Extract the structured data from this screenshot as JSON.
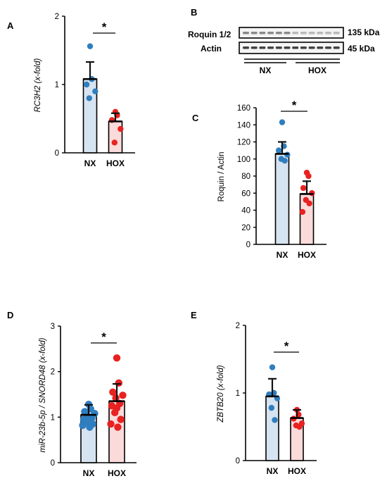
{
  "chart_data": [
    {
      "panel": "A",
      "type": "bar",
      "categories": [
        "NX",
        "HOX"
      ],
      "values": [
        1.08,
        0.46
      ],
      "errors": [
        0.25,
        0.12
      ],
      "points": [
        [
          1.56,
          1.08,
          1.0,
          0.9,
          0.8
        ],
        [
          0.6,
          0.55,
          0.48,
          0.35,
          0.15
        ]
      ],
      "ylabel": "RC3H2 (x-fold)",
      "ylim": [
        0,
        2
      ],
      "yticks": [
        "0",
        "1",
        "2"
      ],
      "significance": "*",
      "colors": {
        "bar_fill": [
          "#d6e3f1",
          "#fbdada"
        ],
        "dots": [
          "#2f7ebf",
          "#e82121"
        ],
        "error": "#111111"
      }
    },
    {
      "panel": "B",
      "type": "western-blot",
      "rows": [
        {
          "label": "Roquin 1/2",
          "size": "135 kDa"
        },
        {
          "label": "Actin",
          "size": "45 kDa"
        }
      ],
      "groups": [
        "NX",
        "HOX"
      ]
    },
    {
      "panel": "C",
      "type": "bar",
      "categories": [
        "NX",
        "HOX"
      ],
      "values": [
        106,
        59
      ],
      "errors": [
        14,
        15
      ],
      "points": [
        [
          143,
          115,
          110,
          105,
          100,
          98
        ],
        [
          84,
          80,
          66,
          60,
          52,
          48,
          38
        ]
      ],
      "ylabel": "Roquin / Actin",
      "ylim": [
        0,
        160
      ],
      "yticks": [
        "0",
        "20",
        "40",
        "60",
        "80",
        "100",
        "120",
        "140",
        "160"
      ],
      "significance": "*",
      "colors": {
        "bar_fill": [
          "#d6e3f1",
          "#fbdada"
        ],
        "dots": [
          "#2f7ebf",
          "#e82121"
        ],
        "error": "#111111"
      }
    },
    {
      "panel": "D",
      "type": "bar",
      "categories": [
        "NX",
        "HOX"
      ],
      "values": [
        1.05,
        1.35
      ],
      "errors": [
        0.22,
        0.38
      ],
      "points": [
        [
          1.28,
          1.18,
          1.12,
          1.08,
          1.02,
          0.98,
          0.95,
          0.93,
          0.9,
          0.85,
          0.82,
          0.78
        ],
        [
          2.3,
          1.75,
          1.55,
          1.48,
          1.42,
          1.3,
          1.25,
          1.2,
          1.1,
          0.95,
          0.85,
          0.78
        ]
      ],
      "ylabel": "miR-23b-5p / SNORD48 (x-fold)",
      "ylim": [
        0,
        3
      ],
      "yticks": [
        "0",
        "1",
        "2",
        "3"
      ],
      "significance": "*",
      "colors": {
        "bar_fill": [
          "#d6e3f1",
          "#fbdada"
        ],
        "dots": [
          "#2f7ebf",
          "#e82121"
        ],
        "error": "#111111"
      }
    },
    {
      "panel": "E",
      "type": "bar",
      "categories": [
        "NX",
        "HOX"
      ],
      "values": [
        0.95,
        0.63
      ],
      "errors": [
        0.26,
        0.12
      ],
      "points": [
        [
          1.38,
          1.0,
          0.98,
          0.92,
          0.78,
          0.6
        ],
        [
          0.75,
          0.68,
          0.62,
          0.55,
          0.52,
          0.5
        ]
      ],
      "ylabel": "ZBTB20 (x-fold)",
      "ylim": [
        0,
        2
      ],
      "yticks": [
        "0",
        "1",
        "2"
      ],
      "significance": "*",
      "colors": {
        "bar_fill": [
          "#d6e3f1",
          "#fbdada"
        ],
        "dots": [
          "#2f7ebf",
          "#e82121"
        ],
        "error": "#111111"
      }
    }
  ]
}
